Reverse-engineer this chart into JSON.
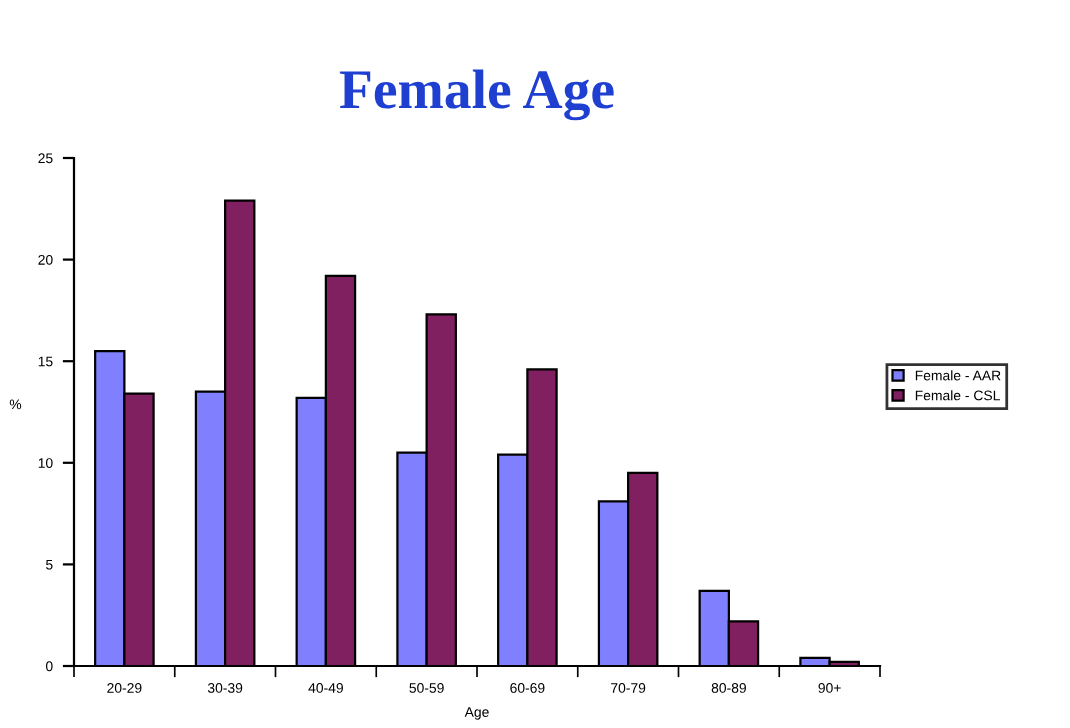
{
  "chart_data": {
    "type": "bar",
    "title": "Female Age",
    "xlabel": "Age",
    "ylabel": "%",
    "categories": [
      "20-29",
      "30-39",
      "40-49",
      "50-59",
      "60-69",
      "70-79",
      "80-89",
      "90+"
    ],
    "series": [
      {
        "name": "Female - AAR",
        "color": "#8080ff",
        "values": [
          15.5,
          13.5,
          13.2,
          10.5,
          10.4,
          8.1,
          3.7,
          0.4
        ]
      },
      {
        "name": "Female - CSL",
        "color": "#802060",
        "values": [
          13.4,
          22.9,
          19.2,
          17.3,
          14.6,
          9.5,
          2.2,
          0.2
        ]
      }
    ],
    "ylim": [
      0,
      25
    ],
    "yticks": [
      0,
      5,
      10,
      15,
      20,
      25
    ],
    "grid": false,
    "legend": "right"
  }
}
